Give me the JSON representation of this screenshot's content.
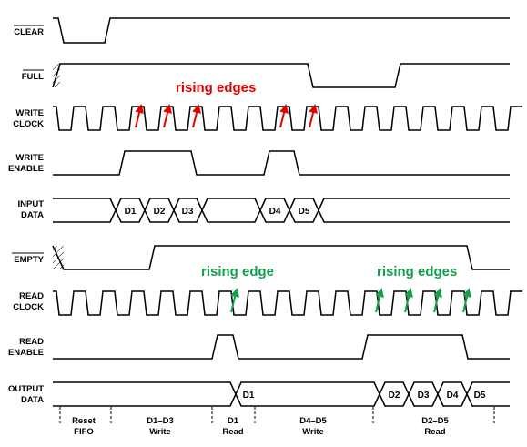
{
  "signals": {
    "clear": "CLEAR",
    "full": "FULL",
    "write_clock": [
      "WRITE",
      "CLOCK"
    ],
    "write_enable": [
      "WRITE",
      "ENABLE"
    ],
    "input_data": [
      "INPUT",
      "DATA"
    ],
    "empty": "EMPTY",
    "read_clock": [
      "READ",
      "CLOCK"
    ],
    "read_enable": [
      "READ",
      "ENABLE"
    ],
    "output_data": [
      "OUTPUT",
      "DATA"
    ]
  },
  "input_words": [
    "D1",
    "D2",
    "D3",
    "D4",
    "D5"
  ],
  "output_words": [
    "D1",
    "D2",
    "D3",
    "D4",
    "D5"
  ],
  "annotations": {
    "write_edges": "rising edges",
    "read_edge_single": "rising edge",
    "read_edges": "rising edges"
  },
  "annotation_colors": {
    "write": "#e10000",
    "read": "#12a04a"
  },
  "phases": [
    [
      "Reset",
      "FIFO"
    ],
    [
      "D1–D3",
      "Write"
    ],
    [
      "D1",
      "Read"
    ],
    [
      "D4–D5",
      "Write"
    ],
    [
      "D2–D5",
      "Read"
    ]
  ]
}
